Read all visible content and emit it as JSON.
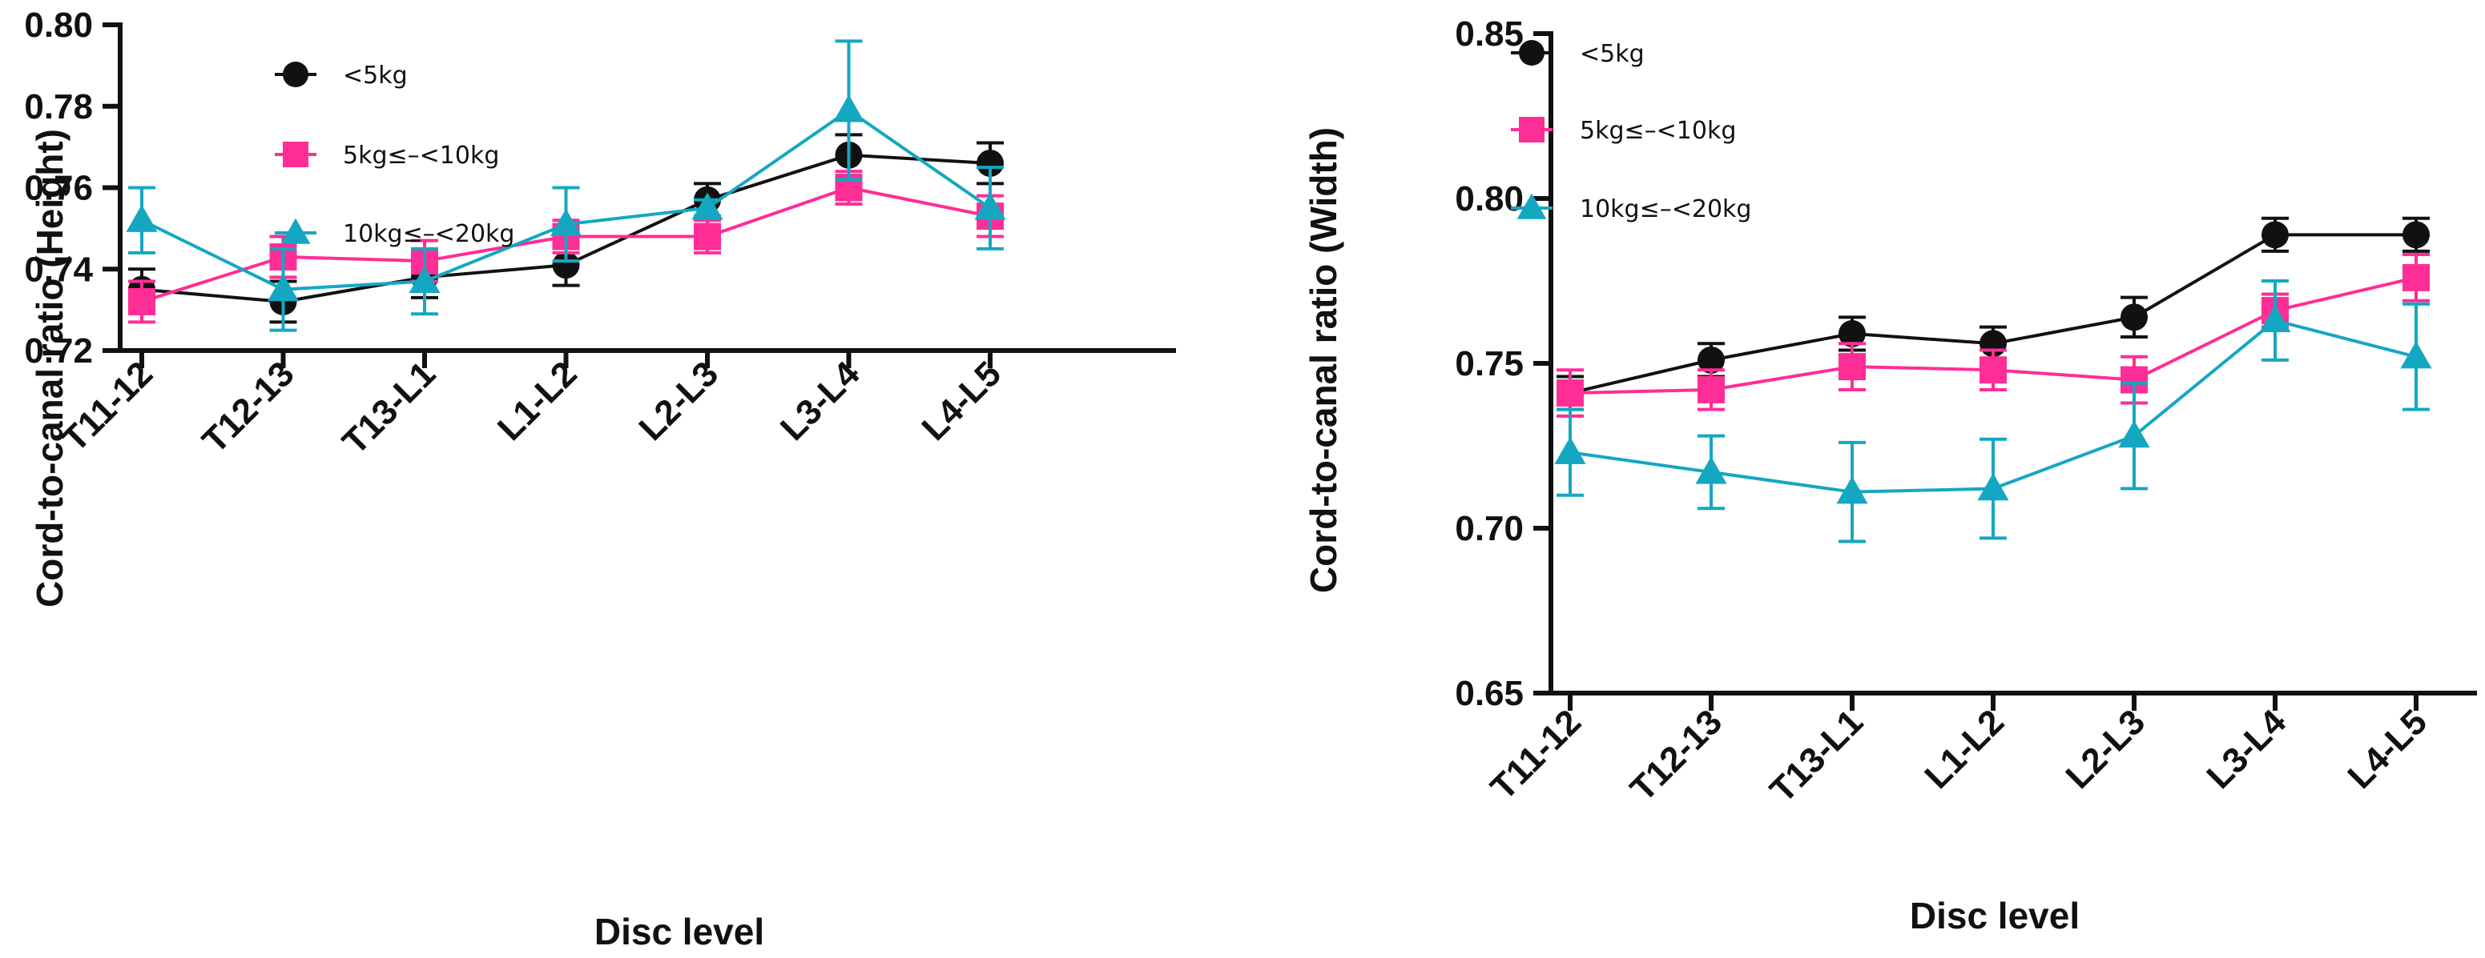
{
  "chart_data": [
    {
      "type": "line",
      "title": "",
      "xlabel": "Disc level",
      "ylabel": "Cord-to-canal ratio (Height)",
      "categories": [
        "T11-12",
        "T12-13",
        "T13-L1",
        "L1-L2",
        "L2-L3",
        "L3-L4",
        "L4-L5"
      ],
      "ylim": [
        0.72,
        0.8
      ],
      "yticks": [
        0.72,
        0.74,
        0.76,
        0.78,
        0.8
      ],
      "ytick_labels": [
        "0.72",
        "0.74",
        "0.76",
        "0.78",
        "0.80"
      ],
      "grid": false,
      "legend_position": "top-left",
      "series": [
        {
          "name": "<5kg",
          "color": "#111111",
          "marker": "circle",
          "values": [
            0.735,
            0.732,
            0.738,
            0.741,
            0.757,
            0.768,
            0.766
          ],
          "errors": [
            0.005,
            0.005,
            0.005,
            0.005,
            0.004,
            0.005,
            0.005
          ]
        },
        {
          "name": "5kg≤–<10kg",
          "color": "#ff2d96",
          "marker": "square",
          "values": [
            0.732,
            0.743,
            0.742,
            0.748,
            0.748,
            0.76,
            0.753
          ],
          "errors": [
            0.005,
            0.005,
            0.005,
            0.004,
            0.004,
            0.004,
            0.005
          ]
        },
        {
          "name": "10kg≤–<20kg",
          "color": "#14a7c2",
          "marker": "triangle",
          "values": [
            0.752,
            0.735,
            0.737,
            0.751,
            0.755,
            0.779,
            0.755
          ],
          "errors": [
            0.008,
            0.01,
            0.008,
            0.009,
            0.002,
            0.017,
            0.01
          ]
        }
      ]
    },
    {
      "type": "line",
      "title": "",
      "xlabel": "Disc level",
      "ylabel": "Cord-to-canal ratio (Width)",
      "categories": [
        "T11-12",
        "T12-13",
        "T13-L1",
        "L1-L2",
        "L2-L3",
        "L3-L4",
        "L4-L5"
      ],
      "ylim": [
        0.65,
        0.85
      ],
      "yticks": [
        0.65,
        0.7,
        0.75,
        0.8,
        0.85
      ],
      "ytick_labels": [
        "0.65",
        "0.70",
        "0.75",
        "0.80",
        "0.85"
      ],
      "grid": false,
      "legend_position": "top-left",
      "series": [
        {
          "name": "<5kg",
          "color": "#111111",
          "marker": "circle",
          "values": [
            0.741,
            0.751,
            0.759,
            0.756,
            0.764,
            0.789,
            0.789
          ],
          "errors": [
            0.005,
            0.005,
            0.005,
            0.005,
            0.006,
            0.005,
            0.005
          ]
        },
        {
          "name": "5kg≤–<10kg",
          "color": "#ff2d96",
          "marker": "square",
          "values": [
            0.741,
            0.742,
            0.749,
            0.748,
            0.745,
            0.766,
            0.776
          ],
          "errors": [
            0.007,
            0.006,
            0.007,
            0.006,
            0.007,
            0.005,
            0.007
          ]
        },
        {
          "name": "10kg≤–<20kg",
          "color": "#14a7c2",
          "marker": "triangle",
          "values": [
            0.723,
            0.717,
            0.711,
            0.712,
            0.728,
            0.763,
            0.752
          ],
          "errors": [
            0.013,
            0.011,
            0.015,
            0.015,
            0.016,
            0.012,
            0.016
          ]
        }
      ]
    }
  ]
}
